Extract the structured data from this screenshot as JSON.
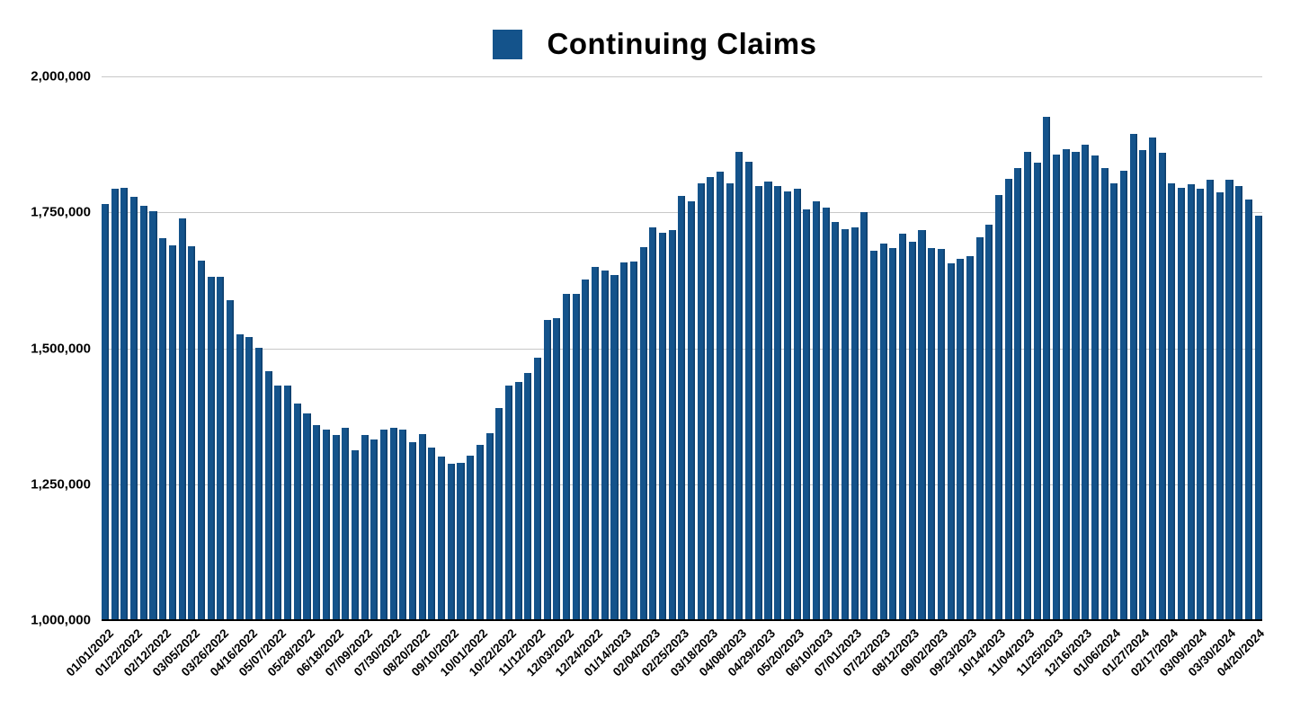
{
  "title": "Continuing Claims",
  "colors": {
    "bar": "#14538b",
    "bar_edge": "#0d3e6b",
    "gridline": "#c8c8c8",
    "axis_line": "#000000",
    "text": "#000000"
  },
  "chart_data": {
    "type": "bar",
    "title": "Continuing Claims",
    "legend": [
      "Continuing Claims"
    ],
    "legend_position": "top-center",
    "grid": "horizontal",
    "ylim": [
      1000000,
      2000000
    ],
    "y_tick_values": [
      2000000,
      1750000,
      1500000,
      1250000,
      1000000
    ],
    "y_tick_labels": [
      "2,000,000",
      "1,750,000",
      "1,500,000",
      "1,250,000",
      "1,000,000"
    ],
    "x_tick_every": 3,
    "x_tick_labels": [
      "01/01/2022",
      "01/22/2022",
      "02/12/2022",
      "03/05/2022",
      "03/26/2022",
      "04/16/2022",
      "05/07/2022",
      "05/28/2022",
      "06/18/2022",
      "07/09/2022",
      "07/30/2022",
      "08/20/2022",
      "09/10/2022",
      "10/01/2022",
      "10/22/2022",
      "11/12/2022",
      "12/03/2022",
      "12/24/2022",
      "01/14/2023",
      "02/04/2023",
      "02/25/2023",
      "03/18/2023",
      "04/08/2023",
      "04/29/2023",
      "05/20/2023",
      "06/10/2023",
      "07/01/2023",
      "07/22/2023",
      "08/12/2023",
      "09/02/2023",
      "09/23/2023",
      "10/14/2023",
      "11/04/2023",
      "11/25/2023",
      "12/16/2023",
      "01/06/2024",
      "01/27/2024",
      "02/17/2024",
      "03/09/2024",
      "03/30/2024",
      "04/20/2024"
    ],
    "x": [
      "01/01/2022",
      "01/08/2022",
      "01/15/2022",
      "01/22/2022",
      "01/29/2022",
      "02/05/2022",
      "02/12/2022",
      "02/19/2022",
      "02/26/2022",
      "03/05/2022",
      "03/12/2022",
      "03/19/2022",
      "03/26/2022",
      "04/02/2022",
      "04/09/2022",
      "04/16/2022",
      "04/23/2022",
      "04/30/2022",
      "05/07/2022",
      "05/14/2022",
      "05/21/2022",
      "05/28/2022",
      "06/04/2022",
      "06/11/2022",
      "06/18/2022",
      "06/25/2022",
      "07/02/2022",
      "07/09/2022",
      "07/16/2022",
      "07/23/2022",
      "07/30/2022",
      "08/06/2022",
      "08/13/2022",
      "08/20/2022",
      "08/27/2022",
      "09/03/2022",
      "09/10/2022",
      "09/17/2022",
      "09/24/2022",
      "10/01/2022",
      "10/08/2022",
      "10/15/2022",
      "10/22/2022",
      "10/29/2022",
      "11/05/2022",
      "11/12/2022",
      "11/19/2022",
      "11/26/2022",
      "12/03/2022",
      "12/10/2022",
      "12/17/2022",
      "12/24/2022",
      "12/31/2022",
      "01/07/2023",
      "01/14/2023",
      "01/21/2023",
      "01/28/2023",
      "02/04/2023",
      "02/11/2023",
      "02/18/2023",
      "02/25/2023",
      "03/04/2023",
      "03/11/2023",
      "03/18/2023",
      "03/25/2023",
      "04/01/2023",
      "04/08/2023",
      "04/15/2023",
      "04/22/2023",
      "04/29/2023",
      "05/06/2023",
      "05/13/2023",
      "05/20/2023",
      "05/27/2023",
      "06/03/2023",
      "06/10/2023",
      "06/17/2023",
      "06/24/2023",
      "07/01/2023",
      "07/08/2023",
      "07/15/2023",
      "07/22/2023",
      "07/29/2023",
      "08/05/2023",
      "08/12/2023",
      "08/19/2023",
      "08/26/2023",
      "09/02/2023",
      "09/09/2023",
      "09/16/2023",
      "09/23/2023",
      "09/30/2023",
      "10/07/2023",
      "10/14/2023",
      "10/21/2023",
      "10/28/2023",
      "11/04/2023",
      "11/11/2023",
      "11/18/2023",
      "11/25/2023",
      "12/02/2023",
      "12/09/2023",
      "12/16/2023",
      "12/23/2023",
      "12/30/2023",
      "01/06/2024",
      "01/13/2024",
      "01/20/2024",
      "01/27/2024",
      "02/03/2024",
      "02/10/2024",
      "02/17/2024",
      "02/24/2024",
      "03/02/2024",
      "03/09/2024",
      "03/16/2024",
      "03/23/2024",
      "03/30/2024",
      "04/06/2024",
      "04/13/2024",
      "04/20/2024"
    ],
    "values": [
      1766000,
      1793000,
      1795000,
      1778000,
      1762000,
      1752000,
      1703000,
      1690000,
      1739000,
      1687000,
      1661000,
      1631000,
      1631000,
      1589000,
      1526000,
      1520000,
      1501000,
      1458000,
      1432000,
      1432000,
      1398000,
      1381000,
      1358000,
      1351000,
      1340000,
      1354000,
      1312000,
      1340000,
      1332000,
      1351000,
      1353000,
      1351000,
      1328000,
      1343000,
      1317000,
      1301000,
      1288000,
      1289000,
      1302000,
      1323000,
      1344000,
      1390000,
      1431000,
      1438000,
      1455000,
      1482000,
      1552000,
      1556000,
      1600000,
      1600000,
      1626000,
      1650000,
      1643000,
      1634000,
      1658000,
      1660000,
      1686000,
      1723000,
      1713000,
      1717000,
      1781000,
      1770000,
      1803000,
      1815000,
      1824000,
      1804000,
      1861000,
      1843000,
      1799000,
      1806000,
      1799000,
      1788000,
      1794000,
      1755000,
      1771000,
      1759000,
      1733000,
      1719000,
      1722000,
      1750000,
      1679000,
      1692000,
      1684000,
      1711000,
      1696000,
      1718000,
      1684000,
      1682000,
      1657000,
      1664000,
      1669000,
      1704000,
      1727000,
      1782000,
      1812000,
      1832000,
      1862000,
      1841000,
      1926000,
      1857000,
      1866000,
      1862000,
      1875000,
      1855000,
      1832000,
      1804000,
      1827000,
      1894000,
      1864000,
      1888000,
      1860000,
      1803000,
      1795000,
      1802000,
      1793000,
      1810000,
      1787000,
      1810000,
      1798000,
      1773000,
      1744000
    ]
  }
}
